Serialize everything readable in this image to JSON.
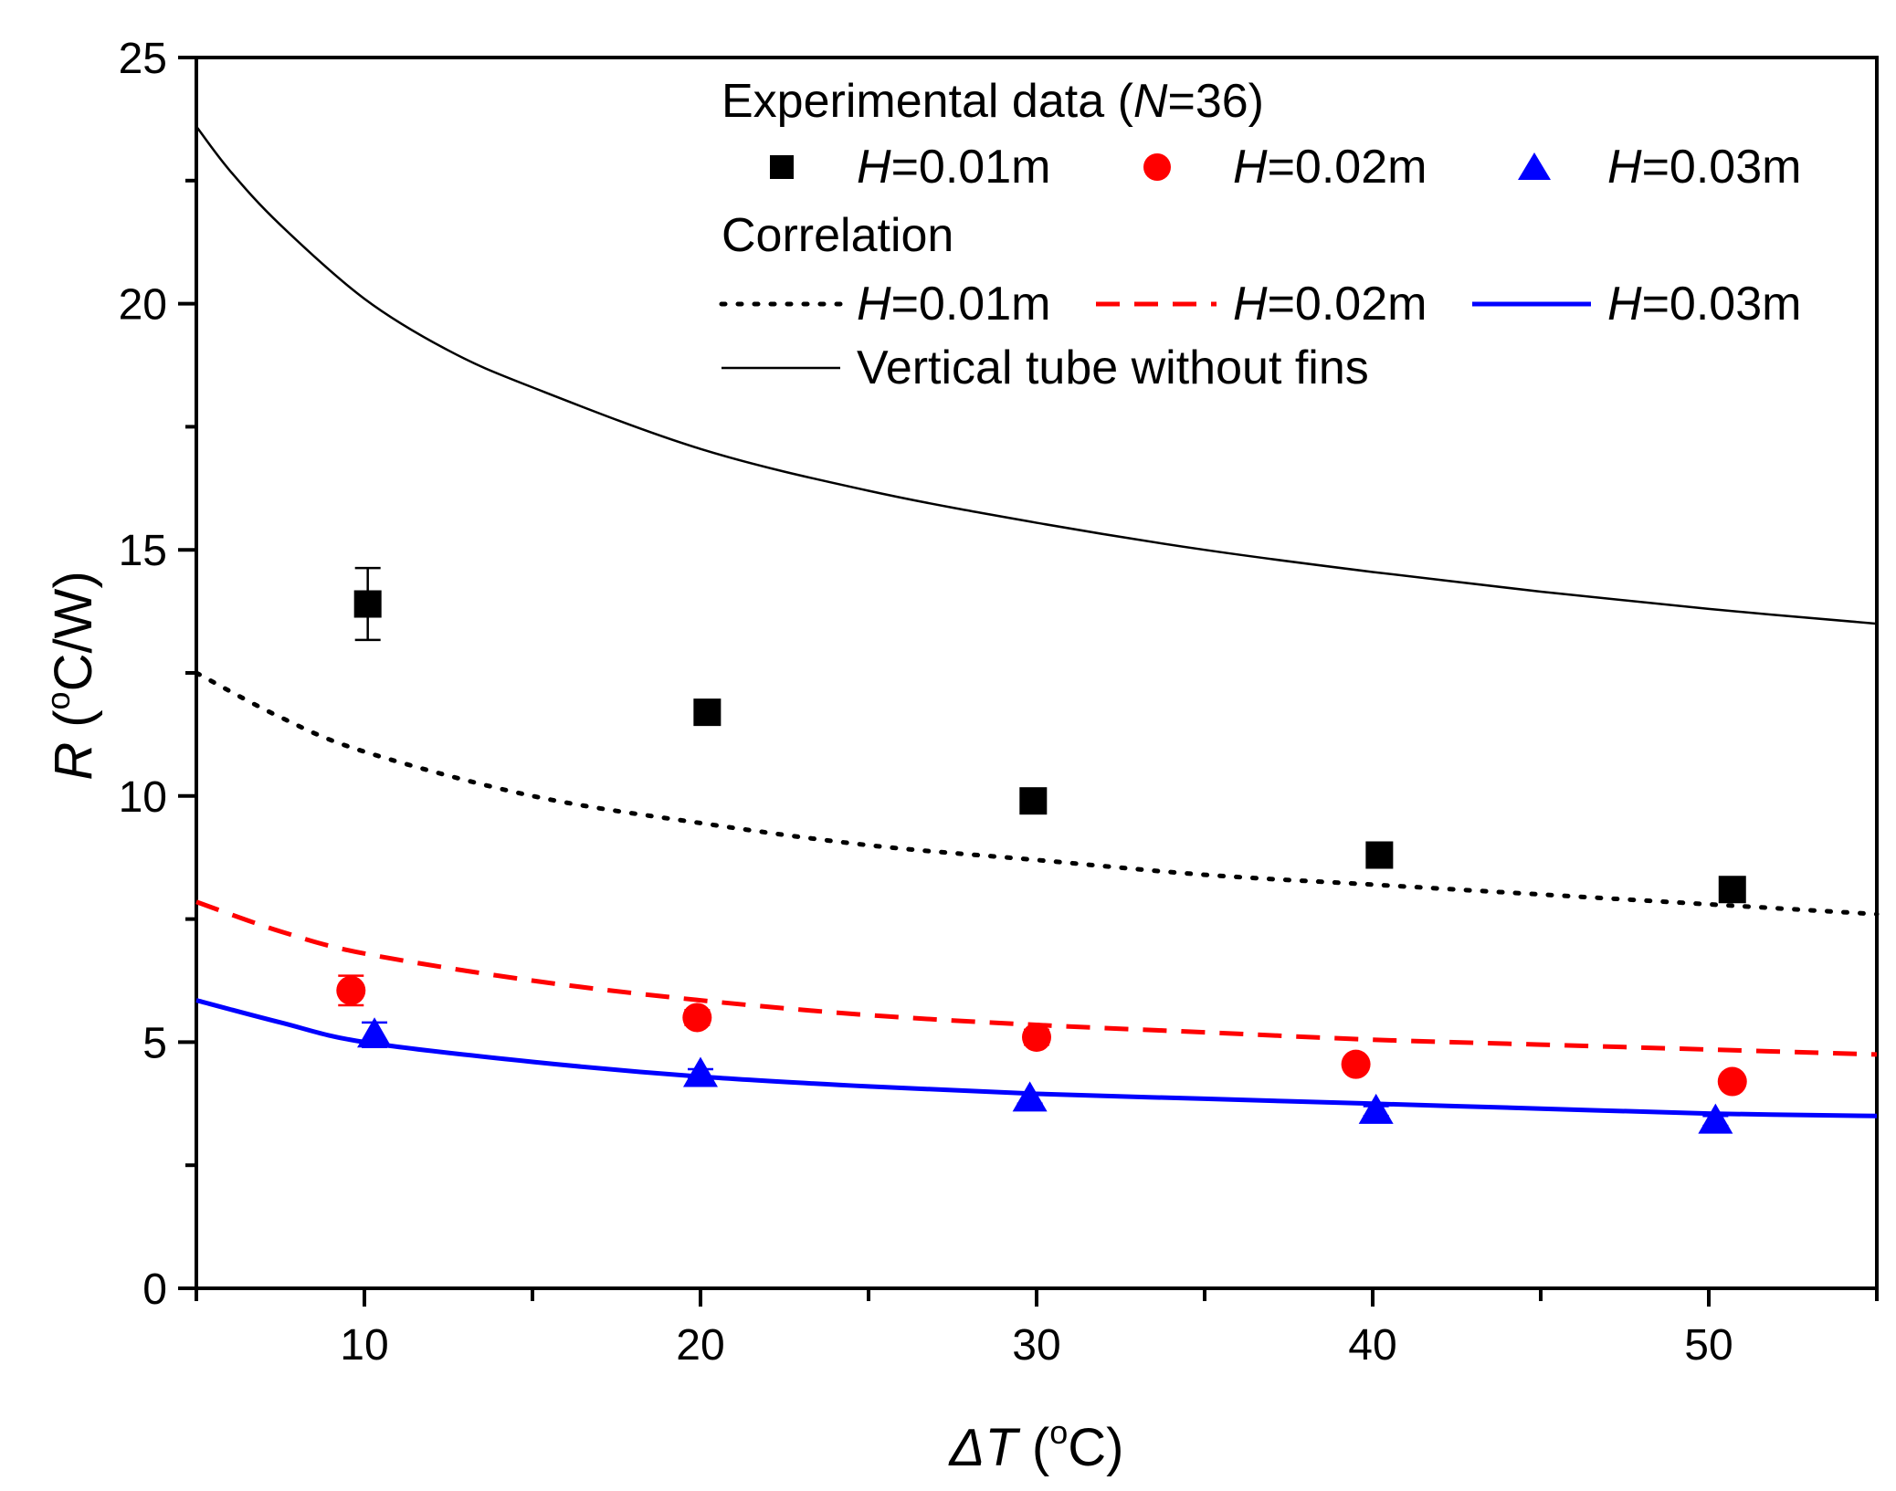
{
  "chart_data": {
    "type": "scatter",
    "xlabel": {
      "prefix": "ΔT",
      "unit": "(",
      "deg": "o",
      "unit_end": "C)"
    },
    "ylabel": {
      "prefix": "R",
      "unit": "(",
      "deg": "o",
      "unit_end": "C/W)"
    },
    "xlim": [
      5,
      55
    ],
    "ylim": [
      0,
      25
    ],
    "x_ticks": [
      10,
      20,
      30,
      40,
      50
    ],
    "y_ticks": [
      0,
      5,
      10,
      15,
      20,
      25
    ],
    "grid": false,
    "legend_position": "top-right",
    "legend": {
      "experimental_heading": "Experimental data (",
      "experimental_heading_var": "N",
      "experimental_heading_tail": "=36)",
      "correlation_heading": "Correlation",
      "entries": [
        {
          "var": "H",
          "text": "=0.01m"
        },
        {
          "var": "H",
          "text": "=0.02m"
        },
        {
          "var": "H",
          "text": "=0.03m"
        },
        {
          "var": "H",
          "text": "=0.01m"
        },
        {
          "var": "H",
          "text": "=0.02m"
        },
        {
          "var": "H",
          "text": "=0.03m"
        }
      ],
      "no_fins_label": "Vertical tube without fins"
    },
    "scatter_series": [
      {
        "name": "H=0.01m",
        "marker": "square",
        "color": "#000000",
        "x": [
          10.1,
          20.2,
          29.9,
          40.2,
          50.7
        ],
        "y": [
          13.9,
          11.7,
          9.9,
          8.8,
          8.1
        ],
        "yerr": [
          0.73,
          0.2,
          0.15,
          0.15,
          0.15
        ]
      },
      {
        "name": "H=0.02m",
        "marker": "circle",
        "color": "#ff0000",
        "x": [
          9.6,
          19.9,
          30.0,
          39.5,
          50.7
        ],
        "y": [
          6.05,
          5.5,
          5.1,
          4.55,
          4.2
        ],
        "yerr": [
          0.3,
          0.15,
          0.15,
          0.1,
          0.1
        ]
      },
      {
        "name": "H=0.03m",
        "marker": "triangle",
        "color": "#0000ff",
        "x": [
          10.3,
          20.0,
          29.8,
          40.1,
          50.2
        ],
        "y": [
          5.15,
          4.35,
          3.85,
          3.6,
          3.4
        ],
        "yerr": [
          0.25,
          0.1,
          0.1,
          0.1,
          0.1
        ]
      }
    ],
    "line_series": [
      {
        "name": "H=0.01m",
        "style": "dotted",
        "color": "#000000",
        "x": [
          5,
          7.5,
          10,
          15,
          20,
          25,
          30,
          35,
          40,
          45,
          50,
          55
        ],
        "y": [
          12.5,
          11.6,
          10.9,
          10.0,
          9.45,
          9.0,
          8.7,
          8.4,
          8.2,
          8.0,
          7.8,
          7.6
        ]
      },
      {
        "name": "H=0.02m",
        "style": "dashed",
        "color": "#ff0000",
        "x": [
          5,
          7.5,
          10,
          15,
          20,
          25,
          30,
          35,
          40,
          45,
          50,
          55
        ],
        "y": [
          7.85,
          7.25,
          6.8,
          6.25,
          5.85,
          5.55,
          5.35,
          5.2,
          5.05,
          4.95,
          4.85,
          4.75
        ]
      },
      {
        "name": "H=0.03m",
        "style": "solid",
        "color": "#0000ff",
        "x": [
          5,
          7.5,
          10,
          15,
          20,
          25,
          30,
          35,
          40,
          45,
          50,
          55
        ],
        "y": [
          5.85,
          5.4,
          5.0,
          4.6,
          4.3,
          4.1,
          3.95,
          3.85,
          3.75,
          3.65,
          3.55,
          3.5
        ]
      },
      {
        "name": "Vertical tube without fins",
        "style": "thin",
        "color": "#000000",
        "x": [
          5,
          6,
          7.5,
          10,
          12.5,
          15,
          20,
          25,
          30,
          35,
          40,
          45,
          50,
          55
        ],
        "y": [
          23.6,
          22.7,
          21.6,
          20.1,
          19.05,
          18.3,
          17.05,
          16.2,
          15.55,
          15.0,
          14.55,
          14.15,
          13.8,
          13.5
        ]
      }
    ]
  }
}
